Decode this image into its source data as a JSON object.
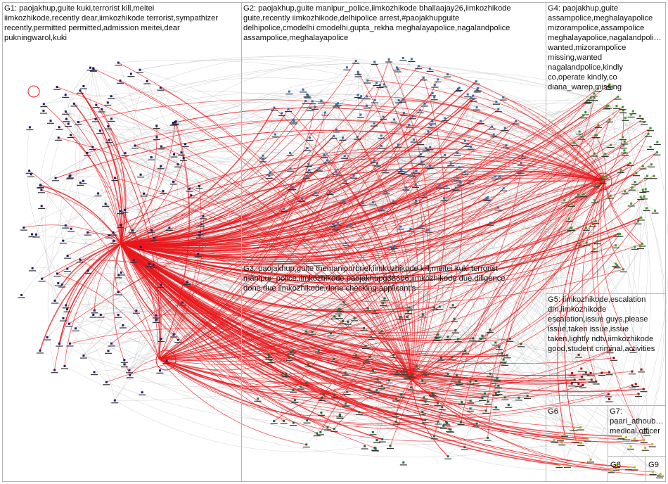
{
  "groups": [
    {
      "id": "G1",
      "text": "G1: paojakhup,guite  kuki,terrorist  kill,meitei\niimkozhikode,recently  dear,iimkozhikode  terrorist,sympathizer\nrecently,permitted  permitted,admission  meitei,dear\npukningwarol,kuki",
      "color": "#1f1a6e"
    },
    {
      "id": "G2",
      "text": "G2: paojakhup,guite  manipur_police,iimkozhikode  bhallaajay26,iimkozhikode\nguite,recently  iimkozhikode,delhipolice  arrest,#paojakhupguite\ndelhipolice,cmodelhi  cmodelhi,gupta_rekha  meghalayapolice,nagalandpolice\nassampolice,meghalayapolice",
      "color": "#2e6fb5"
    },
    {
      "id": "G3",
      "text": "G3: paojakhup,guite  themanipurbrief,iimkozhikode  kill,meitei  kuki,terrorist\nmanipur_police,iimkozhikode  paojakhupg38606,iimkozhikode  due,diligence\ndone,due  iimkozhikode,done  checking,applicant's",
      "color": "#1e6b3a"
    },
    {
      "id": "G4",
      "text": "G4: paojakhup,guite\nassampolice,meghalayapolice\nmizorampolice,assampolice\nmeghalayapolice,nagalandpoli…\nwanted,mizorampolice\nmissing,wanted\nnagalandpolice,kindly\nco,operate  kindly,co\ndiana_warep,missing",
      "color": "#3a9a1e"
    },
    {
      "id": "G5",
      "text": "G5: iimkozhikode,escalation\ndm,iimkozhikode\nescalation,issue  guys,please\nissue,taken  issue,issue\ntaken,lightly  ndtv,iimkozhikode\ngood,student  criminal,activities",
      "color": "#9b1010"
    },
    {
      "id": "G6",
      "text": "G6",
      "color": "#d99a1e"
    },
    {
      "id": "G7",
      "text": "G7: paari_athoub…\nmedical,officer",
      "color": "#d4b01a"
    },
    {
      "id": "G8",
      "text": "G8",
      "color": "#c9c21a"
    },
    {
      "id": "G9",
      "text": "G9",
      "color": "#b9c21a"
    }
  ],
  "colors": {
    "edge_highlight": "#e8181c",
    "edge_muted": "#b8b8b8",
    "box_border": "#b5b5b5"
  }
}
